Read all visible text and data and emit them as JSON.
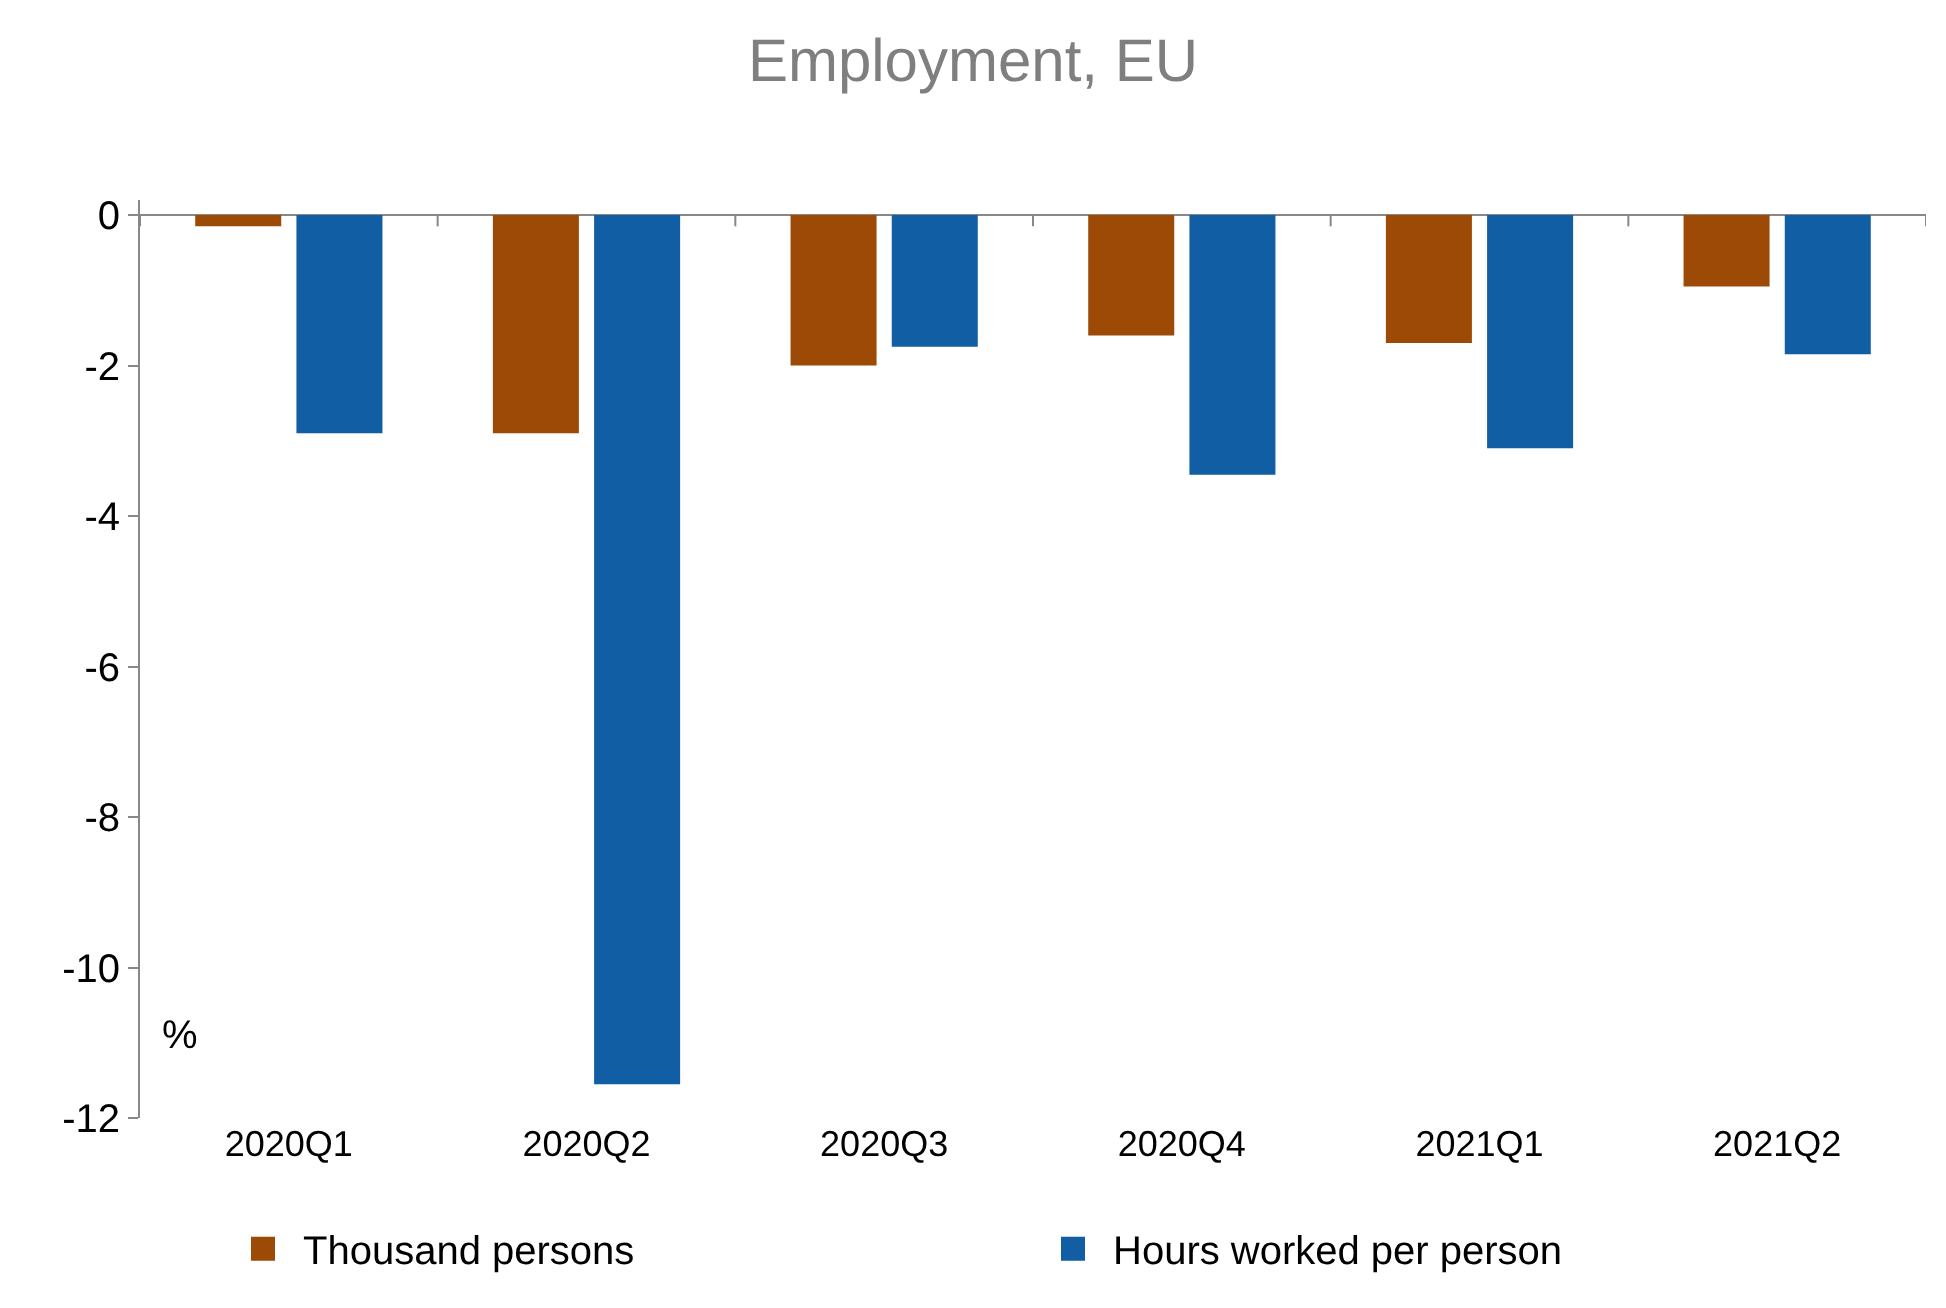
{
  "chart_data": {
    "type": "bar",
    "title": "Employment, EU",
    "ylabel": "%",
    "categories": [
      "2020Q1",
      "2020Q2",
      "2020Q3",
      "2020Q4",
      "2021Q1",
      "2021Q2"
    ],
    "series": [
      {
        "name": "Thousand persons",
        "color": "#9c4a06",
        "values": [
          -0.15,
          -2.9,
          -2.0,
          -1.6,
          -1.7,
          -0.95
        ]
      },
      {
        "name": "Hours worked per person",
        "color": "#125ea4",
        "values": [
          -2.9,
          -11.55,
          -1.75,
          -3.45,
          -3.1,
          -1.85
        ]
      }
    ],
    "ylim": [
      -12,
      0.2
    ],
    "yticks": [
      0,
      -2,
      -4,
      -6,
      -8,
      -10,
      -12
    ],
    "legend": "bottom"
  }
}
